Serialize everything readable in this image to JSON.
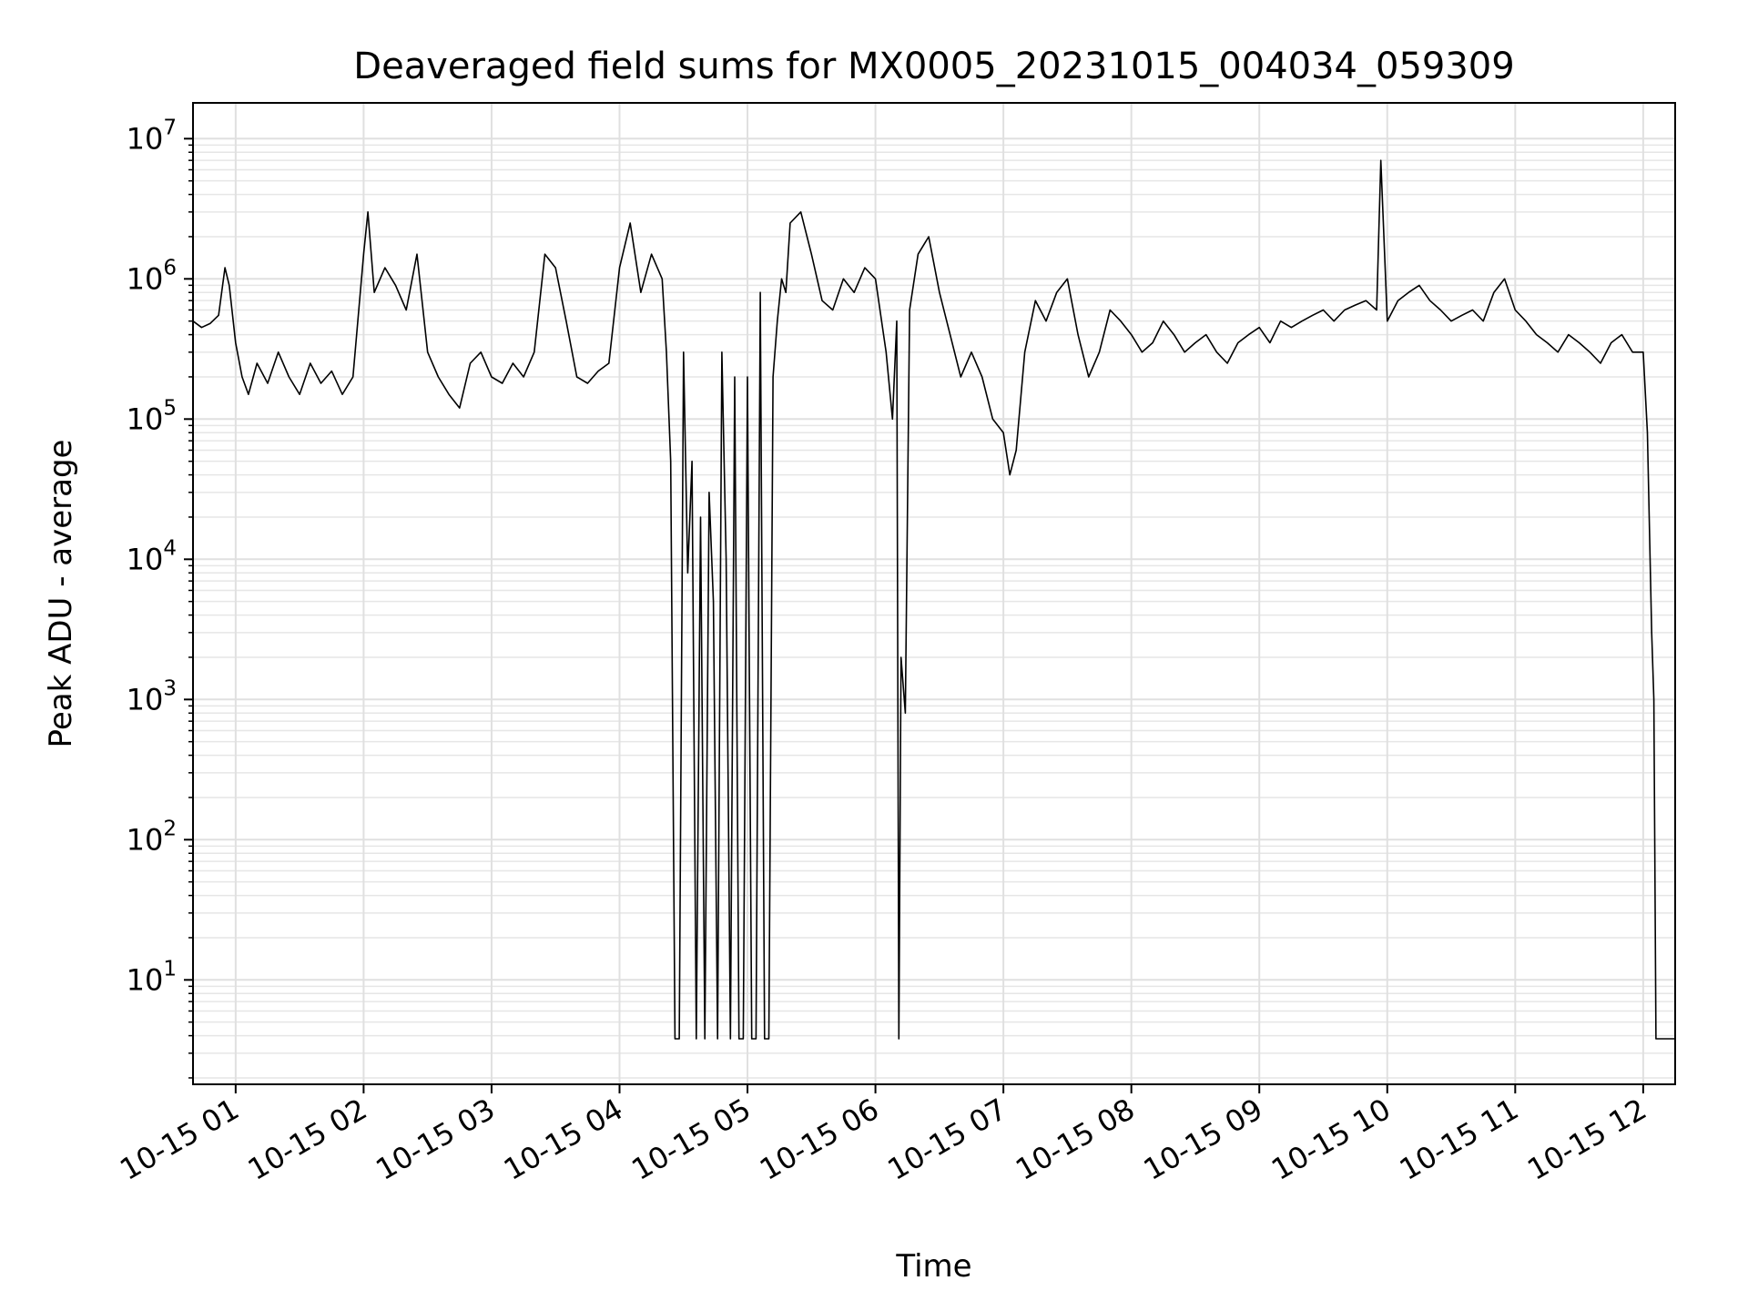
{
  "chart_data": {
    "type": "line",
    "title": "Deaveraged field sums for MX0005_20231015_004034_059309",
    "xlabel": "Time",
    "ylabel": "Peak ADU - average",
    "yscale": "log",
    "ylim": [
      1.8,
      18000000
    ],
    "xlim": [
      "10-15 00:40",
      "10-15 12:15"
    ],
    "grid": true,
    "grid_minor": true,
    "x_ticks": [
      "10-15 01",
      "10-15 02",
      "10-15 03",
      "10-15 04",
      "10-15 05",
      "10-15 06",
      "10-15 07",
      "10-15 08",
      "10-15 09",
      "10-15 10",
      "10-15 11",
      "10-15 12"
    ],
    "y_ticks": [
      {
        "base": "10",
        "exp": "1",
        "value": 10
      },
      {
        "base": "10",
        "exp": "2",
        "value": 100
      },
      {
        "base": "10",
        "exp": "3",
        "value": 1000
      },
      {
        "base": "10",
        "exp": "4",
        "value": 10000
      },
      {
        "base": "10",
        "exp": "5",
        "value": 100000
      },
      {
        "base": "10",
        "exp": "6",
        "value": 1000000
      },
      {
        "base": "10",
        "exp": "7",
        "value": 10000000
      }
    ],
    "line_color": "#000000",
    "series": [
      {
        "x": [
          "10-15 00:40",
          "10-15 00:44",
          "10-15 00:48",
          "10-15 00:52",
          "10-15 00:55",
          "10-15 00:57",
          "10-15 01:00",
          "10-15 01:03",
          "10-15 01:06",
          "10-15 01:10",
          "10-15 01:15",
          "10-15 01:20",
          "10-15 01:25",
          "10-15 01:30",
          "10-15 01:35",
          "10-15 01:40",
          "10-15 01:45",
          "10-15 01:50",
          "10-15 01:55",
          "10-15 02:00",
          "10-15 02:02",
          "10-15 02:05",
          "10-15 02:10",
          "10-15 02:15",
          "10-15 02:20",
          "10-15 02:25",
          "10-15 02:30",
          "10-15 02:35",
          "10-15 02:40",
          "10-15 02:45",
          "10-15 02:50",
          "10-15 02:55",
          "10-15 03:00",
          "10-15 03:05",
          "10-15 03:10",
          "10-15 03:15",
          "10-15 03:20",
          "10-15 03:25",
          "10-15 03:30",
          "10-15 03:35",
          "10-15 03:40",
          "10-15 03:45",
          "10-15 03:50",
          "10-15 03:55",
          "10-15 04:00",
          "10-15 04:05",
          "10-15 04:10",
          "10-15 04:15",
          "10-15 04:20",
          "10-15 04:22",
          "10-15 04:24",
          "10-15 04:26",
          "10-15 04:28",
          "10-15 04:30",
          "10-15 04:32",
          "10-15 04:34",
          "10-15 04:36",
          "10-15 04:38",
          "10-15 04:40",
          "10-15 04:42",
          "10-15 04:44",
          "10-15 04:46",
          "10-15 04:48",
          "10-15 04:50",
          "10-15 04:52",
          "10-15 04:54",
          "10-15 04:56",
          "10-15 04:58",
          "10-15 05:00",
          "10-15 05:02",
          "10-15 05:04",
          "10-15 05:06",
          "10-15 05:08",
          "10-15 05:10",
          "10-15 05:12",
          "10-15 05:14",
          "10-15 05:16",
          "10-15 05:18",
          "10-15 05:20",
          "10-15 05:25",
          "10-15 05:30",
          "10-15 05:35",
          "10-15 05:40",
          "10-15 05:45",
          "10-15 05:50",
          "10-15 05:55",
          "10-15 06:00",
          "10-15 06:05",
          "10-15 06:08",
          "10-15 06:10",
          "10-15 06:11",
          "10-15 06:12",
          "10-15 06:14",
          "10-15 06:16",
          "10-15 06:20",
          "10-15 06:25",
          "10-15 06:30",
          "10-15 06:35",
          "10-15 06:40",
          "10-15 06:45",
          "10-15 06:50",
          "10-15 06:55",
          "10-15 07:00",
          "10-15 07:03",
          "10-15 07:06",
          "10-15 07:10",
          "10-15 07:15",
          "10-15 07:20",
          "10-15 07:25",
          "10-15 07:30",
          "10-15 07:35",
          "10-15 07:40",
          "10-15 07:45",
          "10-15 07:50",
          "10-15 07:55",
          "10-15 08:00",
          "10-15 08:05",
          "10-15 08:10",
          "10-15 08:15",
          "10-15 08:20",
          "10-15 08:25",
          "10-15 08:30",
          "10-15 08:35",
          "10-15 08:40",
          "10-15 08:45",
          "10-15 08:50",
          "10-15 08:55",
          "10-15 09:00",
          "10-15 09:05",
          "10-15 09:10",
          "10-15 09:15",
          "10-15 09:20",
          "10-15 09:25",
          "10-15 09:30",
          "10-15 09:35",
          "10-15 09:40",
          "10-15 09:45",
          "10-15 09:50",
          "10-15 09:55",
          "10-15 09:57",
          "10-15 10:00",
          "10-15 10:05",
          "10-15 10:10",
          "10-15 10:15",
          "10-15 10:20",
          "10-15 10:25",
          "10-15 10:30",
          "10-15 10:35",
          "10-15 10:40",
          "10-15 10:45",
          "10-15 10:50",
          "10-15 10:55",
          "10-15 11:00",
          "10-15 11:05",
          "10-15 11:10",
          "10-15 11:15",
          "10-15 11:20",
          "10-15 11:25",
          "10-15 11:30",
          "10-15 11:35",
          "10-15 11:40",
          "10-15 11:45",
          "10-15 11:50",
          "10-15 11:55",
          "10-15 12:00",
          "10-15 12:02",
          "10-15 12:04",
          "10-15 12:05",
          "10-15 12:06",
          "10-15 12:07",
          "10-15 12:08",
          "10-15 12:10",
          "10-15 12:15"
        ],
        "y": [
          500000,
          450000,
          480000,
          550000,
          1200000,
          900000,
          350000,
          200000,
          150000,
          250000,
          180000,
          300000,
          200000,
          150000,
          250000,
          180000,
          220000,
          150000,
          200000,
          1500000,
          3000000,
          800000,
          1200000,
          900000,
          600000,
          1500000,
          300000,
          200000,
          150000,
          120000,
          250000,
          300000,
          200000,
          180000,
          250000,
          200000,
          300000,
          1500000,
          1200000,
          500000,
          200000,
          180000,
          220000,
          250000,
          1200000,
          2500000,
          800000,
          1500000,
          1000000,
          300000,
          50000,
          3.8,
          3.8,
          300000,
          8000,
          50000,
          3.8,
          20000,
          3.8,
          30000,
          5000,
          3.8,
          300000,
          10000,
          3.8,
          200000,
          3.8,
          3.8,
          200000,
          3.8,
          3.8,
          800000,
          3.8,
          3.8,
          200000,
          500000,
          1000000,
          800000,
          2500000,
          3000000,
          1500000,
          700000,
          600000,
          1000000,
          800000,
          1200000,
          1000000,
          300000,
          100000,
          500000,
          3.8,
          2000,
          800,
          600000,
          1500000,
          2000000,
          800000,
          400000,
          200000,
          300000,
          200000,
          100000,
          80000,
          40000,
          60000,
          300000,
          700000,
          500000,
          800000,
          1000000,
          400000,
          200000,
          300000,
          600000,
          500000,
          400000,
          300000,
          350000,
          500000,
          400000,
          300000,
          350000,
          400000,
          300000,
          250000,
          350000,
          400000,
          450000,
          350000,
          500000,
          450000,
          500000,
          550000,
          600000,
          500000,
          600000,
          650000,
          700000,
          600000,
          7000000,
          500000,
          700000,
          800000,
          900000,
          700000,
          600000,
          500000,
          550000,
          600000,
          500000,
          800000,
          1000000,
          600000,
          500000,
          400000,
          350000,
          300000,
          400000,
          350000,
          300000,
          250000,
          350000,
          400000,
          300000,
          300000,
          80000,
          3000,
          1000,
          3.8,
          3.8,
          3.8,
          3.8,
          3.8
        ]
      }
    ]
  }
}
